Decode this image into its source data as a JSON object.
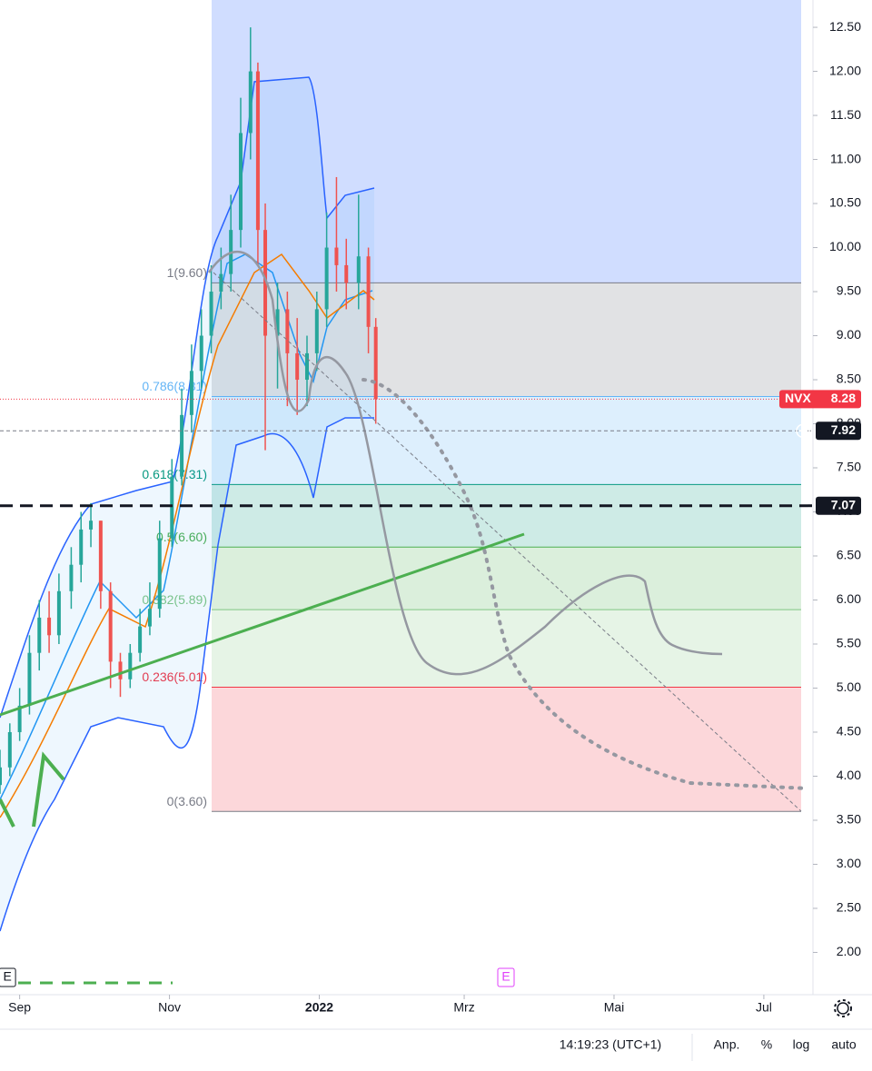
{
  "chart_data": {
    "type": "candlestick",
    "x": [
      -8,
      -4,
      0,
      4,
      8,
      12,
      16,
      21,
      25,
      29,
      33,
      37,
      41,
      45,
      49,
      53,
      57,
      62,
      66,
      70,
      74,
      78,
      82,
      86,
      90,
      94,
      97,
      100,
      105,
      109,
      113,
      117,
      121,
      125,
      129,
      133,
      138,
      142,
      145
    ],
    "open": [
      3.9,
      4.1,
      4.5,
      4.8,
      5.4,
      5.8,
      5.6,
      6.1,
      6.4,
      6.8,
      6.9,
      6.1,
      5.3,
      5.1,
      5.4,
      5.7,
      5.9,
      6.7,
      7.4,
      8.1,
      8.6,
      9.0,
      9.5,
      9.7,
      10.2,
      11.3,
      12.0,
      10.2,
      9.0,
      9.3,
      8.8,
      8.5,
      8.8,
      9.3,
      10.0,
      9.8,
      9.6,
      9.9,
      9.1
    ],
    "high": [
      4.3,
      4.6,
      5.0,
      5.6,
      6.0,
      6.1,
      6.3,
      6.6,
      7.0,
      7.1,
      6.9,
      6.2,
      5.4,
      5.5,
      5.9,
      6.2,
      6.9,
      7.6,
      8.4,
      8.9,
      9.3,
      9.8,
      10.0,
      10.6,
      11.7,
      12.5,
      12.1,
      10.5,
      9.6,
      9.5,
      9.2,
      9.0,
      9.5,
      10.4,
      10.8,
      10.1,
      10.6,
      10.0,
      9.2
    ],
    "low": [
      3.8,
      4.0,
      4.4,
      4.7,
      5.2,
      5.4,
      5.5,
      5.9,
      6.2,
      6.6,
      5.9,
      5.0,
      4.9,
      5.0,
      5.3,
      5.6,
      5.8,
      6.6,
      7.3,
      7.9,
      8.4,
      8.8,
      9.3,
      9.5,
      10.0,
      11.0,
      9.8,
      7.7,
      8.4,
      8.2,
      8.1,
      8.2,
      8.6,
      9.1,
      9.5,
      9.3,
      9.3,
      8.8,
      8.0
    ],
    "close": [
      4.1,
      4.5,
      4.8,
      5.4,
      5.8,
      5.6,
      6.1,
      6.4,
      6.8,
      6.9,
      6.1,
      5.3,
      5.1,
      5.4,
      5.7,
      5.9,
      6.7,
      7.4,
      8.1,
      8.6,
      9.0,
      9.5,
      9.7,
      10.2,
      11.3,
      12.0,
      10.2,
      9.0,
      9.3,
      8.8,
      8.5,
      8.8,
      9.3,
      10.0,
      9.8,
      9.6,
      9.9,
      9.1,
      8.28
    ],
    "up_color": "#26a69a",
    "down_color": "#ef5350",
    "xlim": [
      -8,
      323
    ],
    "xticks": [
      {
        "value": 0,
        "label": "Sep"
      },
      {
        "value": 61,
        "label": "Nov"
      },
      {
        "value": 122,
        "label": "2022"
      },
      {
        "value": 181,
        "label": "Mrz"
      },
      {
        "value": 242,
        "label": "Mai"
      },
      {
        "value": 303,
        "label": "Jul"
      }
    ],
    "ylim": [
      1.52,
      12.81
    ],
    "yticks": [
      {
        "value": 2,
        "label": "2.00"
      },
      {
        "value": 2.5,
        "label": "2.50"
      },
      {
        "value": 3,
        "label": "3.00"
      },
      {
        "value": 3.5,
        "label": "3.50"
      },
      {
        "value": 4,
        "label": "4.00"
      },
      {
        "value": 4.5,
        "label": "4.50"
      },
      {
        "value": 5,
        "label": "5.00"
      },
      {
        "value": 5.5,
        "label": "5.50"
      },
      {
        "value": 6,
        "label": "6.00"
      },
      {
        "value": 6.5,
        "label": "6.50"
      },
      {
        "value": 7,
        "label": "7.00"
      },
      {
        "value": 7.5,
        "label": "7.50"
      },
      {
        "value": 8,
        "label": "8.00"
      },
      {
        "value": 8.5,
        "label": "8.50"
      },
      {
        "value": 9,
        "label": "9.00"
      },
      {
        "value": 9.5,
        "label": "9.50"
      },
      {
        "value": 10,
        "label": "10.00"
      },
      {
        "value": 10.5,
        "label": "10.50"
      },
      {
        "value": 11,
        "label": "11.00"
      },
      {
        "value": 11.5,
        "label": "11.50"
      },
      {
        "value": 12,
        "label": "12.00"
      },
      {
        "value": 12.5,
        "label": "12.50"
      }
    ]
  },
  "fib": {
    "labels": [
      "1(9.60)",
      "0.786(8.31)",
      "0.618(7.31)",
      "0.5(6.60)",
      "0.382(5.89)",
      "0.236(5.01)",
      "0(3.60)"
    ],
    "values": [
      9.6,
      8.31,
      7.31,
      6.6,
      5.89,
      5.01,
      3.6
    ],
    "colors": [
      "#787b86",
      "#64b5f6",
      "#089981",
      "#4caf50",
      "#81c784",
      "#f23645",
      "#787b86"
    ],
    "fills": [
      "rgba(120,123,134,0.22)",
      "rgba(100,181,246,0.22)",
      "rgba(8,153,129,0.2)",
      "rgba(76,175,80,0.2)",
      "rgba(129,199,132,0.2)",
      "rgba(242,54,69,0.2)"
    ]
  },
  "price_tags": [
    {
      "name": "NVX",
      "value": 8.28,
      "color": "#f23645"
    },
    {
      "value": 7.92,
      "color": "#131722"
    },
    {
      "value": 7.07,
      "color": "#131722"
    }
  ],
  "events": [
    {
      "label": "E",
      "x": -5,
      "color": "#131722"
    },
    {
      "label": "E",
      "x": 198,
      "color": "#e040fb"
    }
  ],
  "status_bar": {
    "time": "14:19:23 (UTC+1)",
    "buttons": [
      "Anp.",
      "%",
      "log",
      "auto"
    ]
  }
}
